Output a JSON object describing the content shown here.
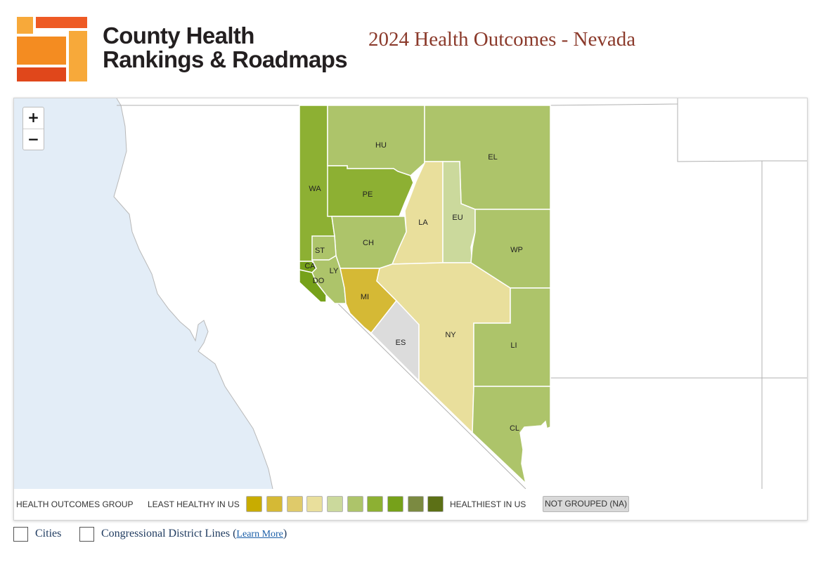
{
  "header": {
    "brand_line1": "County Health",
    "brand_line2": "Rankings & Roadmaps",
    "page_title": "2024 Health Outcomes - Nevada"
  },
  "map": {
    "zoom_in_label": "+",
    "zoom_out_label": "−",
    "colors": {
      "ocean": "#e3edf7",
      "land": "#ffffff",
      "border": "#b0b0b0",
      "county_border": "#ffffff",
      "not_grouped": "#dcdcdc"
    },
    "counties": [
      {
        "abbr": "HU",
        "group": 6,
        "color": "#adc46a"
      },
      {
        "abbr": "EL",
        "group": 6,
        "color": "#adc46a"
      },
      {
        "abbr": "WA",
        "group": 7,
        "color": "#8db033"
      },
      {
        "abbr": "PE",
        "group": 7,
        "color": "#8db033"
      },
      {
        "abbr": "LA",
        "group": 4,
        "color": "#e9df9c"
      },
      {
        "abbr": "EU",
        "group": 5,
        "color": "#cbd99c"
      },
      {
        "abbr": "CH",
        "group": 6,
        "color": "#adc46a"
      },
      {
        "abbr": "WP",
        "group": 6,
        "color": "#adc46a"
      },
      {
        "abbr": "ST",
        "group": 6,
        "color": "#adc46a"
      },
      {
        "abbr": "CA",
        "group": 8,
        "color": "#76a11a"
      },
      {
        "abbr": "LY",
        "group": 6,
        "color": "#adc46a"
      },
      {
        "abbr": "DO",
        "group": 8,
        "color": "#76a11a"
      },
      {
        "abbr": "MI",
        "group": 2,
        "color": "#d5b935"
      },
      {
        "abbr": "ES",
        "group": null,
        "color": "#dcdcdc"
      },
      {
        "abbr": "NY",
        "group": 4,
        "color": "#e9df9c"
      },
      {
        "abbr": "LI",
        "group": 6,
        "color": "#adc46a"
      },
      {
        "abbr": "CL",
        "group": 6,
        "color": "#adc46a"
      }
    ]
  },
  "legend": {
    "title": "HEALTH OUTCOMES GROUP",
    "least_label": "LEAST HEALTHY IN US",
    "healthiest_label": "HEALTHIEST IN US",
    "not_grouped_label": "NOT GROUPED (NA)",
    "swatches": [
      "#c8ac00",
      "#d5b935",
      "#dfca6a",
      "#e9df9c",
      "#cbd99c",
      "#adc46a",
      "#8db033",
      "#76a11a",
      "#7b8a41",
      "#5c7016"
    ]
  },
  "options": {
    "cities_label": "Cities",
    "cities_checked": false,
    "districts_label": "Congressional District Lines",
    "districts_checked": false,
    "learn_more_label": "Learn More"
  }
}
